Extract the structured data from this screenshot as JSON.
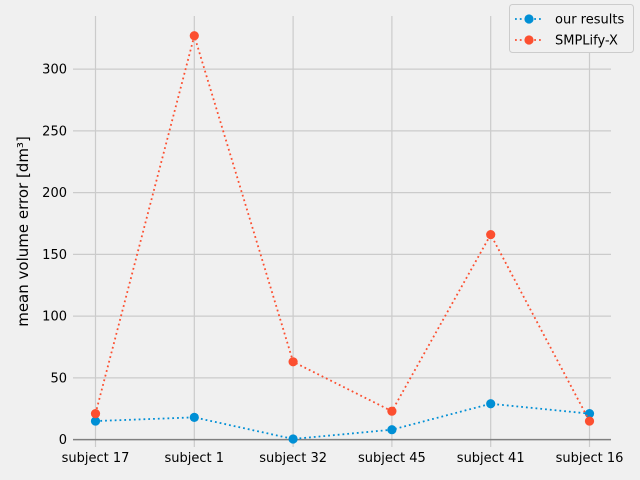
{
  "chart_data": {
    "type": "line",
    "categories": [
      "subject 17",
      "subject 1",
      "subject 32",
      "subject 45",
      "subject 41",
      "subject 16"
    ],
    "series": [
      {
        "name": "our results",
        "values": [
          15,
          18,
          0.5,
          8,
          29,
          21
        ],
        "color": "#008fd5",
        "linestyle": "dotted",
        "marker": "circle"
      },
      {
        "name": "SMPLify-X",
        "values": [
          21,
          327,
          63,
          23,
          166,
          15
        ],
        "color": "#fc4f30",
        "linestyle": "dotted",
        "marker": "circle"
      }
    ],
    "ylabel": "mean volume error [dm³]",
    "xlabel": "",
    "ylim": [
      -6,
      343
    ],
    "yticks": [
      0,
      50,
      100,
      150,
      200,
      250,
      300
    ],
    "grid": true,
    "legend": "top-right",
    "background": "#f0f0f0"
  }
}
